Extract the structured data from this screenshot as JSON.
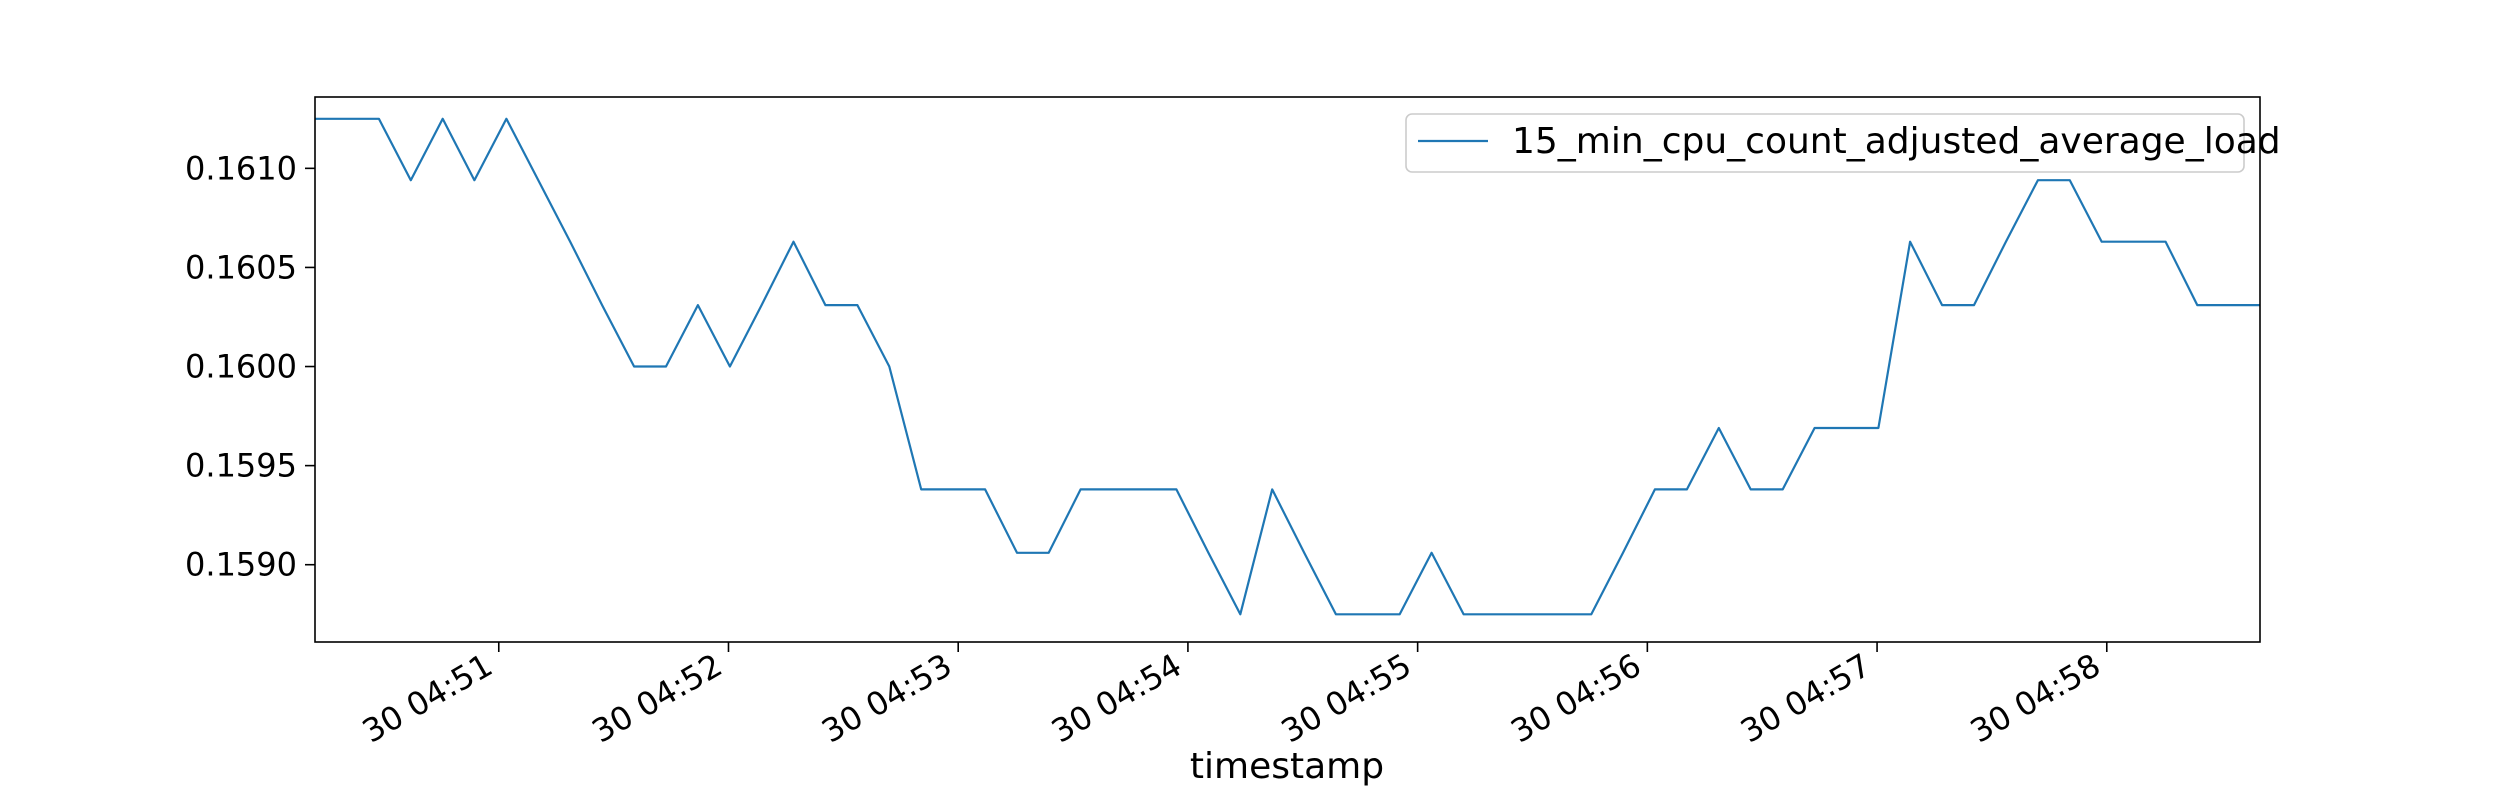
{
  "chart_data": {
    "type": "line",
    "title": "",
    "xlabel": "timestamp",
    "ylabel": "",
    "x_tick_labels": [
      "30 04:51",
      "30 04:52",
      "30 04:53",
      "30 04:54",
      "30 04:55",
      "30 04:56",
      "30 04:57",
      "30 04:58"
    ],
    "x_tick_minutes": [
      51,
      52,
      53,
      54,
      55,
      56,
      57,
      58
    ],
    "xlim": [
      50.2,
      58.667
    ],
    "y_ticks": [
      0.159,
      0.1595,
      0.16,
      0.1605,
      0.161
    ],
    "y_tick_labels": [
      "0.1590",
      "0.1595",
      "0.1600",
      "0.1605",
      "0.1610"
    ],
    "ylim": [
      0.15861,
      0.16136
    ],
    "grid": false,
    "legend_position": "upper right",
    "series": [
      {
        "name": "15_min_cpu_count_adjusted_average_load",
        "color": "#1f77b4",
        "x_minutes": [
          50.2,
          50.478,
          50.617,
          50.756,
          50.894,
          51.033,
          51.172,
          51.311,
          51.45,
          51.589,
          51.728,
          51.867,
          52.006,
          52.144,
          52.283,
          52.422,
          52.561,
          52.7,
          52.839,
          52.978,
          53.117,
          53.256,
          53.394,
          53.533,
          53.672,
          53.811,
          53.95,
          54.089,
          54.228,
          54.367,
          54.506,
          54.644,
          54.783,
          54.922,
          55.061,
          55.2,
          55.339,
          55.478,
          55.617,
          55.756,
          55.894,
          56.033,
          56.172,
          56.311,
          56.45,
          56.589,
          56.728,
          56.867,
          57.006,
          57.144,
          57.283,
          57.422,
          57.561,
          57.7,
          57.839,
          57.978,
          58.117,
          58.256,
          58.394,
          58.533,
          58.667
        ],
        "values": [
          0.16125,
          0.16125,
          0.16094,
          0.16125,
          0.16094,
          0.16125,
          0.16094,
          0.16063,
          0.16031,
          0.16,
          0.16,
          0.16031,
          0.16,
          0.16031,
          0.16063,
          0.16031,
          0.16031,
          0.16,
          0.15938,
          0.15938,
          0.15938,
          0.15906,
          0.15906,
          0.15938,
          0.15938,
          0.15938,
          0.15938,
          0.15906,
          0.15875,
          0.15938,
          0.15906,
          0.15875,
          0.15875,
          0.15875,
          0.15906,
          0.15875,
          0.15875,
          0.15875,
          0.15875,
          0.15875,
          0.15906,
          0.15938,
          0.15938,
          0.15969,
          0.15938,
          0.15938,
          0.15969,
          0.15969,
          0.15969,
          0.16063,
          0.16031,
          0.16031,
          0.16063,
          0.16094,
          0.16094,
          0.16063,
          0.16063,
          0.16063,
          0.16031,
          0.16031,
          0.16031
        ]
      }
    ]
  }
}
